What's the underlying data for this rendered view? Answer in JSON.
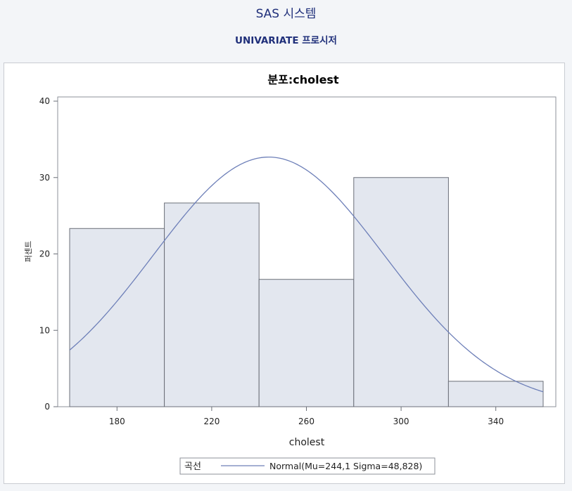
{
  "header": {
    "title": "SAS 시스템",
    "subtitle": "UNIVARIATE 프로시저"
  },
  "colors": {
    "background": "#f3f5f8",
    "plot_background": "#ffffff",
    "bar_fill": "#e3e7ef",
    "bar_stroke": "#6b6f78",
    "curve": "#6d7fb8",
    "title": "#1f2f7a"
  },
  "chart_data": {
    "type": "bar",
    "title": "분포:cholest",
    "xlabel": "cholest",
    "ylabel": "퍼센트",
    "xlim": [
      160,
      360
    ],
    "ylim": [
      0,
      40
    ],
    "bins": [
      {
        "start": 160,
        "end": 200,
        "value": 23.33
      },
      {
        "start": 200,
        "end": 240,
        "value": 26.67
      },
      {
        "start": 240,
        "end": 280,
        "value": 16.67
      },
      {
        "start": 280,
        "end": 320,
        "value": 30.0
      },
      {
        "start": 320,
        "end": 360,
        "value": 3.33
      }
    ],
    "x_ticks": [
      180,
      220,
      260,
      300,
      340
    ],
    "y_ticks": [
      0,
      10,
      20,
      30,
      40
    ],
    "curve": {
      "distribution": "Normal",
      "mu": 244.1,
      "sigma": 48.828
    },
    "legend": {
      "position": "bottom",
      "title": "곡선",
      "entry": "Normal(Mu=244,1 Sigma=48,828)"
    },
    "grid": false
  }
}
